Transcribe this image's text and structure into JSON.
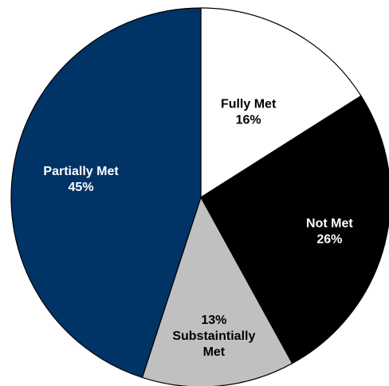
{
  "chart_data": {
    "type": "pie",
    "title": "",
    "slices": [
      {
        "name": "Fully Met",
        "label_lines": [
          "Fully Met",
          "16%"
        ],
        "value": 16,
        "color": "#ffffff",
        "text_color": "#000000"
      },
      {
        "name": "Not Met",
        "label_lines": [
          "Not Met",
          "26%"
        ],
        "value": 26,
        "color": "#000000",
        "text_color": "#ffffff"
      },
      {
        "name": "Substaintially Met",
        "label_lines": [
          "13%",
          "Substaintially",
          "Met"
        ],
        "value": 13,
        "color": "#c0c0c0",
        "text_color": "#000000"
      },
      {
        "name": "Partially Met",
        "label_lines": [
          "Partially Met",
          "45%"
        ],
        "value": 45,
        "color": "#003366",
        "text_color": "#ffffff"
      }
    ],
    "start_angle": "12 o'clock",
    "direction": "clockwise",
    "legend": "none"
  }
}
